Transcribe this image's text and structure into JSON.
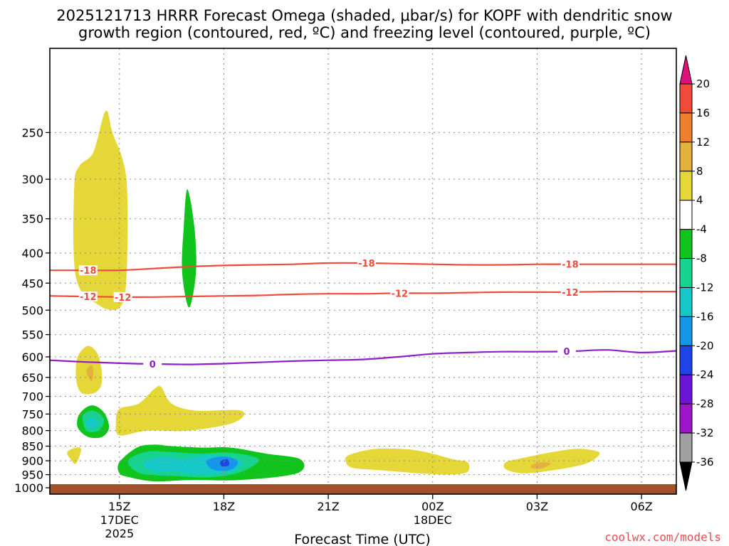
{
  "title_line1": "2025121713 HRRR Forecast Omega (shaded, μbar/s) for KOPF with dendritic snow",
  "title_line2": "growth region (contoured, red, ºC) and freezing level (contoured, purple, ºC)",
  "credit": "coolwx.com/models",
  "chart_data": {
    "type": "contour",
    "title": "2025121713 HRRR Forecast Omega (shaded, μbar/s) for KOPF with dendritic snow growth region (contoured, red, ºC) and freezing level (contoured, purple, ºC)",
    "xlabel": "Forecast Time (UTC)",
    "ylabel": "",
    "x_ticks": [
      {
        "value": 15,
        "lines": [
          "15Z",
          "17DEC",
          "2025"
        ]
      },
      {
        "value": 18,
        "lines": [
          "18Z"
        ]
      },
      {
        "value": 21,
        "lines": [
          "21Z"
        ]
      },
      {
        "value": 24,
        "lines": [
          "00Z",
          "18DEC"
        ]
      },
      {
        "value": 27,
        "lines": [
          "03Z"
        ]
      },
      {
        "value": 30,
        "lines": [
          "06Z"
        ]
      }
    ],
    "xlim": [
      13,
      31
    ],
    "y_ticks": [
      250,
      300,
      350,
      400,
      450,
      500,
      550,
      600,
      650,
      700,
      750,
      800,
      850,
      900,
      950,
      1000
    ],
    "ylim": [
      1025,
      180
    ],
    "y_scale": "log",
    "grid": true,
    "colorbar": {
      "ticks": [
        "20",
        "16",
        "12",
        "8",
        "4",
        "-4",
        "-8",
        "-12",
        "-16",
        "-20",
        "-24",
        "-28",
        "-32",
        "-36"
      ],
      "colors": [
        "#e0107a",
        "#f24a3a",
        "#ef7f2a",
        "#e2b23a",
        "#e6d739",
        "#ffffff",
        "#11c41c",
        "#16d490",
        "#16c8c8",
        "#1496ea",
        "#1e44e8",
        "#6a14d4",
        "#9e14c8",
        "#a0a0a0",
        "#000000"
      ]
    },
    "shaded_regions": [
      {
        "level": 4,
        "color": "#e6d739",
        "points": [
          [
            14.25,
            270
          ],
          [
            14.6,
            230
          ],
          [
            14.8,
            250
          ],
          [
            15.2,
            300
          ],
          [
            15.2,
            440
          ],
          [
            15.0,
            495
          ],
          [
            14.4,
            490
          ],
          [
            13.75,
            440
          ],
          [
            13.7,
            310
          ],
          [
            13.85,
            285
          ]
        ]
      },
      {
        "level": -4,
        "color": "#11c41c",
        "points": [
          [
            16.95,
            312
          ],
          [
            17.15,
            360
          ],
          [
            17.2,
            430
          ],
          [
            17.0,
            495
          ],
          [
            16.8,
            430
          ],
          [
            16.85,
            360
          ]
        ]
      },
      {
        "level": 4,
        "color": "#e6d739",
        "points": [
          [
            13.8,
            600
          ],
          [
            14.1,
            575
          ],
          [
            14.4,
            598
          ],
          [
            14.5,
            660
          ],
          [
            14.3,
            690
          ],
          [
            13.9,
            690
          ],
          [
            13.75,
            650
          ]
        ]
      },
      {
        "level": 8,
        "color": "#e2b23a",
        "points": [
          [
            14.2,
            620
          ],
          [
            14.25,
            635
          ],
          [
            14.2,
            660
          ],
          [
            14.05,
            635
          ]
        ]
      },
      {
        "level": -4,
        "color": "#11c41c",
        "points": [
          [
            13.85,
            750
          ],
          [
            14.2,
            725
          ],
          [
            14.55,
            745
          ],
          [
            14.7,
            790
          ],
          [
            14.5,
            820
          ],
          [
            14.1,
            820
          ],
          [
            13.8,
            790
          ]
        ]
      },
      {
        "level": -8,
        "color": "#16d490",
        "points": [
          [
            13.95,
            755
          ],
          [
            14.25,
            740
          ],
          [
            14.55,
            765
          ],
          [
            14.4,
            800
          ],
          [
            14.05,
            800
          ]
        ]
      },
      {
        "level": -12,
        "color": "#16c8c8",
        "points": [
          [
            14.2,
            760
          ],
          [
            14.4,
            775
          ],
          [
            14.2,
            795
          ],
          [
            14.05,
            775
          ]
        ]
      },
      {
        "level": 4,
        "color": "#e6d739",
        "points": [
          [
            15.0,
            735
          ],
          [
            15.55,
            720
          ],
          [
            16.0,
            680
          ],
          [
            16.2,
            675
          ],
          [
            16.5,
            720
          ],
          [
            17.2,
            740
          ],
          [
            18.5,
            740
          ],
          [
            18.3,
            775
          ],
          [
            17.0,
            800
          ],
          [
            15.8,
            800
          ],
          [
            15.0,
            815
          ],
          [
            14.9,
            775
          ]
        ]
      },
      {
        "level": 4,
        "color": "#e6d739",
        "points": [
          [
            13.5,
            870
          ],
          [
            13.75,
            855
          ],
          [
            13.9,
            862
          ],
          [
            13.75,
            910
          ],
          [
            13.6,
            895
          ]
        ]
      },
      {
        "level": -4,
        "color": "#11c41c",
        "points": [
          [
            15.0,
            905
          ],
          [
            15.5,
            855
          ],
          [
            16.0,
            845
          ],
          [
            16.5,
            850
          ],
          [
            17.4,
            855
          ],
          [
            18.2,
            855
          ],
          [
            19.2,
            875
          ],
          [
            20.2,
            895
          ],
          [
            20.1,
            945
          ],
          [
            18.5,
            970
          ],
          [
            17.1,
            970
          ],
          [
            16.0,
            975
          ],
          [
            15.3,
            960
          ],
          [
            15.0,
            945
          ]
        ]
      },
      {
        "level": -8,
        "color": "#16d490",
        "points": [
          [
            15.25,
            900
          ],
          [
            15.8,
            868
          ],
          [
            16.5,
            870
          ],
          [
            17.3,
            875
          ],
          [
            18.2,
            872
          ],
          [
            19.0,
            895
          ],
          [
            18.5,
            940
          ],
          [
            17.6,
            960
          ],
          [
            16.6,
            955
          ],
          [
            15.6,
            945
          ]
        ]
      },
      {
        "level": -12,
        "color": "#16c8c8",
        "points": [
          [
            15.7,
            905
          ],
          [
            16.3,
            885
          ],
          [
            16.8,
            895
          ],
          [
            17.6,
            880
          ],
          [
            18.5,
            900
          ],
          [
            18.3,
            935
          ],
          [
            17.6,
            950
          ],
          [
            16.6,
            940
          ],
          [
            15.9,
            935
          ]
        ]
      },
      {
        "level": -16,
        "color": "#1496ea",
        "points": [
          [
            17.5,
            900
          ],
          [
            18.0,
            885
          ],
          [
            18.4,
            902
          ],
          [
            18.2,
            932
          ],
          [
            17.7,
            932
          ]
        ]
      },
      {
        "level": -20,
        "color": "#1e44e8",
        "points": [
          [
            17.9,
            902
          ],
          [
            18.1,
            895
          ],
          [
            18.15,
            915
          ],
          [
            17.95,
            920
          ]
        ]
      },
      {
        "level": 4,
        "color": "#e6d739",
        "points": [
          [
            21.6,
            880
          ],
          [
            22.3,
            860
          ],
          [
            23.2,
            860
          ],
          [
            23.8,
            870
          ],
          [
            24.6,
            895
          ],
          [
            25.0,
            905
          ],
          [
            25.0,
            940
          ],
          [
            24.5,
            950
          ],
          [
            23.6,
            945
          ],
          [
            22.6,
            935
          ],
          [
            21.7,
            925
          ],
          [
            21.5,
            900
          ]
        ]
      },
      {
        "level": 4,
        "color": "#e6d739",
        "points": [
          [
            26.1,
            905
          ],
          [
            26.6,
            890
          ],
          [
            27.2,
            875
          ],
          [
            28.0,
            860
          ],
          [
            28.5,
            862
          ],
          [
            28.8,
            875
          ],
          [
            28.4,
            910
          ],
          [
            27.4,
            935
          ],
          [
            26.6,
            945
          ],
          [
            26.1,
            930
          ]
        ]
      },
      {
        "level": 8,
        "color": "#e2b23a",
        "points": [
          [
            26.85,
            915
          ],
          [
            27.1,
            905
          ],
          [
            27.4,
            910
          ],
          [
            27.1,
            928
          ],
          [
            26.85,
            925
          ]
        ]
      }
    ],
    "contours": [
      {
        "value": -18,
        "label": "-18",
        "color": "#f24a3a",
        "x": [
          13,
          14,
          15,
          16,
          17,
          18,
          19,
          20,
          21,
          22,
          23,
          24,
          25,
          26,
          27,
          28,
          29,
          30,
          31
        ],
        "y": [
          428,
          428,
          428,
          425,
          422,
          420,
          419,
          418,
          416,
          416,
          417,
          418,
          419,
          419,
          418,
          418,
          418,
          418,
          418
        ],
        "label_x": [
          14.1,
          22.1,
          27.95
        ]
      },
      {
        "value": -12,
        "label": "-12",
        "color": "#f24a3a",
        "x": [
          13,
          14,
          15,
          16,
          17,
          18,
          19,
          20,
          21,
          22,
          23,
          24,
          25,
          26,
          27,
          28,
          29,
          30,
          31
        ],
        "y": [
          473,
          474,
          475,
          475,
          474,
          473,
          472,
          470,
          469,
          469,
          468,
          468,
          467,
          466,
          466,
          466,
          465,
          465,
          465
        ],
        "label_x": [
          14.1,
          15.1,
          23.05,
          27.95
        ]
      },
      {
        "value": 0,
        "label": "0",
        "color": "#8e1ec8",
        "x": [
          13,
          14,
          15,
          16,
          17,
          18,
          19,
          20,
          21,
          22,
          23,
          24,
          25,
          26,
          27,
          28,
          29,
          30,
          31
        ],
        "y": [
          608,
          612,
          615,
          617,
          618,
          616,
          613,
          610,
          608,
          606,
          600,
          593,
          590,
          588,
          588,
          587,
          584,
          590,
          586
        ],
        "label_x": [
          15.95,
          27.85
        ]
      }
    ]
  }
}
